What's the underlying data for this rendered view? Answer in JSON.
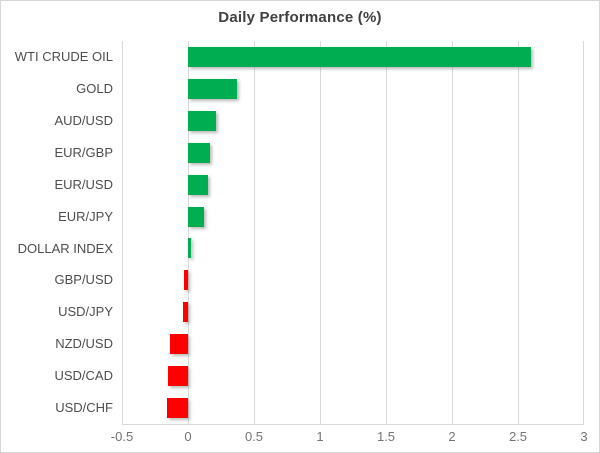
{
  "chart": {
    "title": "Daily Performance (%)"
  },
  "chart_data": {
    "type": "bar",
    "orientation": "horizontal",
    "title": "Daily Performance (%)",
    "categories": [
      "WTI CRUDE OIL",
      "GOLD",
      "AUD/USD",
      "EUR/GBP",
      "EUR/USD",
      "EUR/JPY",
      "DOLLAR INDEX",
      "GBP/USD",
      "USD/JPY",
      "NZD/USD",
      "USD/CAD",
      "USD/CHF"
    ],
    "values": [
      2.6,
      0.37,
      0.21,
      0.17,
      0.15,
      0.12,
      0.02,
      -0.03,
      -0.04,
      -0.14,
      -0.15,
      -0.16
    ],
    "xlabel": "",
    "ylabel": "",
    "xlim": [
      -0.5,
      3
    ],
    "xticks": [
      -0.5,
      0,
      0.5,
      1,
      1.5,
      2,
      2.5,
      3
    ],
    "xtick_labels": [
      "-0.5",
      "0",
      "0.5",
      "1",
      "1.5",
      "2",
      "2.5",
      "3"
    ],
    "grid": true,
    "legend": false,
    "positive_color": "#00AD50",
    "negative_color": "#FF0000",
    "gridline_color": "#D9D9D9",
    "tick_label_color": "#737373",
    "category_label_color": "#4D4D4D",
    "title_color": "#404040"
  }
}
